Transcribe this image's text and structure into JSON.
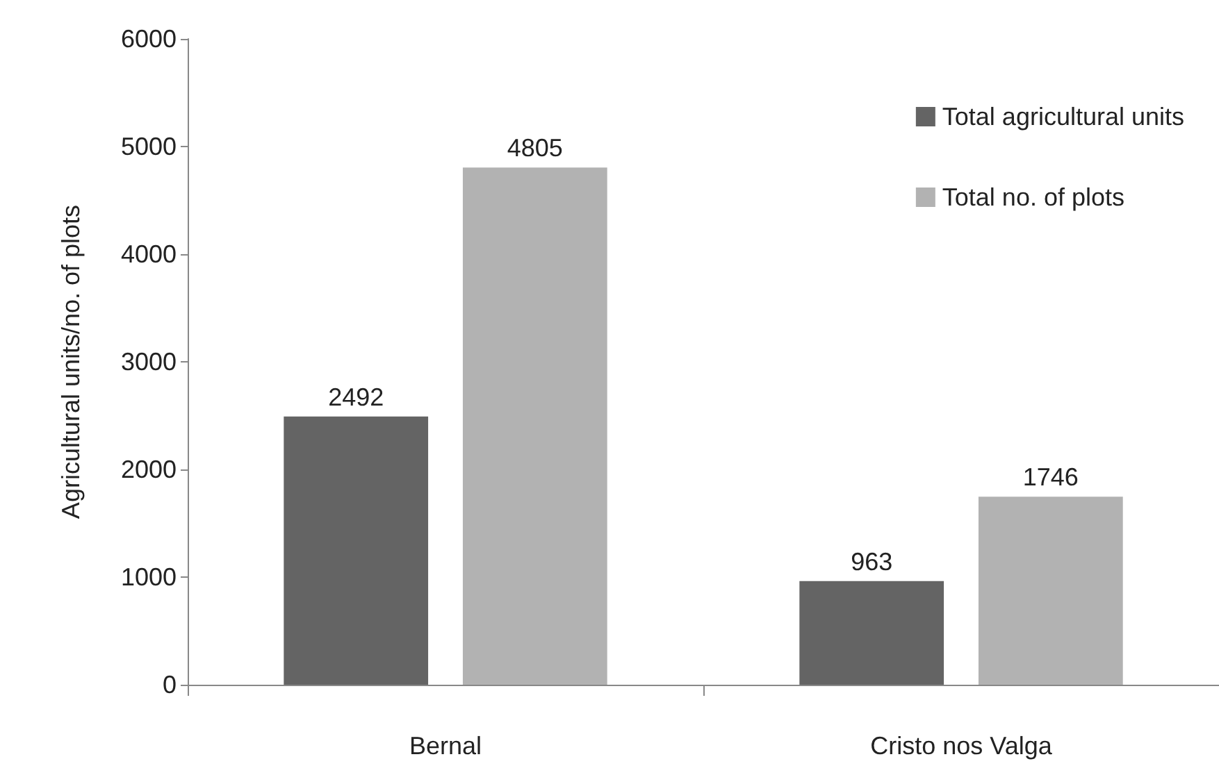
{
  "chart_data": {
    "type": "bar",
    "ylabel": "Agricultural units/no. of plots",
    "categories": [
      "Bernal",
      "Cristo nos Valga"
    ],
    "series": [
      {
        "name": "Total agricultural units",
        "color": "#646464",
        "values": [
          2492,
          963
        ]
      },
      {
        "name": "Total no. of plots",
        "color": "#b2b2b2",
        "values": [
          4805,
          1746
        ]
      }
    ],
    "ylim": [
      0,
      6000
    ],
    "yticks": [
      0,
      1000,
      2000,
      3000,
      4000,
      5000,
      6000
    ],
    "grid": false,
    "legend": "top right",
    "data_labels": true
  }
}
